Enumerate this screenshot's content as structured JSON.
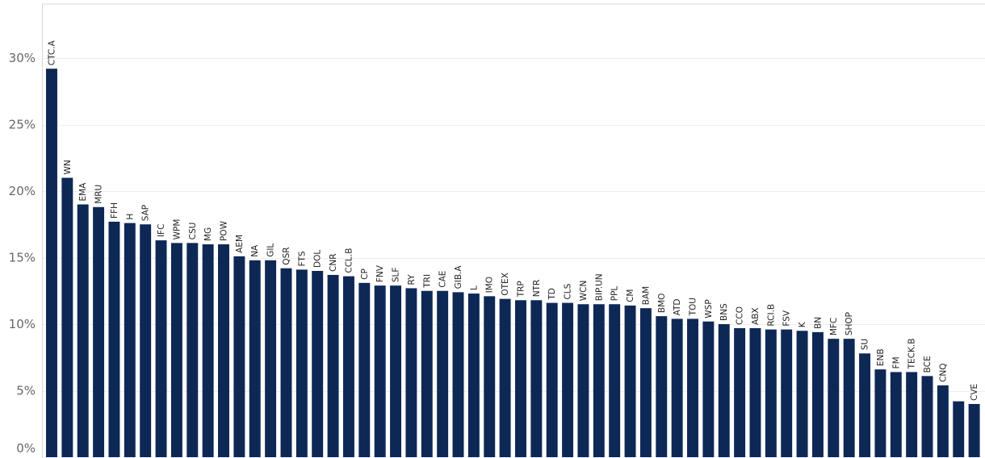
{
  "chart_data": {
    "type": "bar",
    "title": "",
    "xlabel": "",
    "ylabel": "",
    "ylim": [
      0,
      33
    ],
    "yticks": [
      0,
      5,
      10,
      15,
      20,
      25,
      30
    ],
    "ytick_labels": [
      "0%",
      "5%",
      "10%",
      "15%",
      "20%",
      "25%",
      "30%"
    ],
    "grid": true,
    "bar_color": "#0e2856",
    "categories": [
      "CTC.A",
      "WN",
      "EMA",
      "MRU",
      "FFH",
      "H",
      "SAP",
      "IFC",
      "WPM",
      "CSU",
      "MG",
      "POW",
      "AEM",
      "NA",
      "GIL",
      "QSR",
      "FTS",
      "DOL",
      "CNR",
      "CCL.B",
      "CP",
      "FNV",
      "SLF",
      "RY",
      "TRI",
      "CAE",
      "GIB.A",
      "L",
      "IMO",
      "OTEX",
      "TRP",
      "NTR",
      "TD",
      "CLS",
      "WCN",
      "BIP.UN",
      "PPL",
      "CM",
      "BAM",
      "BMO",
      "ATD",
      "TOU",
      "WSP",
      "BNS",
      "CCO",
      "ABX",
      "RCI.B",
      "FSV",
      "K",
      "BN",
      "MFC",
      "SHOP",
      "SU",
      "ENB",
      "FM",
      "TECK.B",
      "BCE",
      "CNQ",
      "",
      ""
    ],
    "values": [
      29.2,
      21.0,
      19.0,
      18.8,
      17.7,
      17.6,
      17.5,
      16.3,
      16.1,
      16.1,
      16.0,
      16.0,
      15.1,
      14.8,
      14.8,
      14.2,
      14.1,
      14.0,
      13.7,
      13.6,
      13.1,
      12.9,
      12.9,
      12.7,
      12.5,
      12.5,
      12.4,
      12.3,
      12.1,
      11.9,
      11.8,
      11.8,
      11.6,
      11.6,
      11.5,
      11.5,
      11.5,
      11.4,
      11.2,
      10.6,
      10.4,
      10.4,
      10.2,
      10.0,
      9.7,
      9.7,
      9.6,
      9.6,
      9.5,
      9.4,
      8.9,
      8.9,
      7.8,
      6.6,
      6.4,
      6.4,
      6.1,
      5.4,
      4.2,
      4.0
    ],
    "bar_labels": [
      "CTC.A",
      "WN",
      "EMA",
      "MRU",
      "FFH",
      "H",
      "SAP",
      "IFC",
      "WPM",
      "CSU",
      "MG",
      "POW",
      "AEM",
      "NA",
      "GIL",
      "QSR",
      "FTS",
      "DOL",
      "CNR",
      "CCL.B",
      "CP",
      "FNV",
      "SLF",
      "RY",
      "TRI",
      "CAE",
      "GIB.A",
      "L",
      "IMO",
      "OTEX",
      "TRP",
      "NTR",
      "TD",
      "CLS",
      "WCN",
      "BIP.UN",
      "PPL",
      "CM",
      "BAM",
      "BMO",
      "ATD",
      "TOU",
      "WSP",
      "BNS",
      "CCO",
      "ABX",
      "RCI.B",
      "FSV",
      "K",
      "BN",
      "MFC",
      "SHOP",
      "SU",
      "ENB",
      "FM",
      "TECK.B",
      "BCE",
      "CNQ",
      "",
      "CVE"
    ]
  }
}
